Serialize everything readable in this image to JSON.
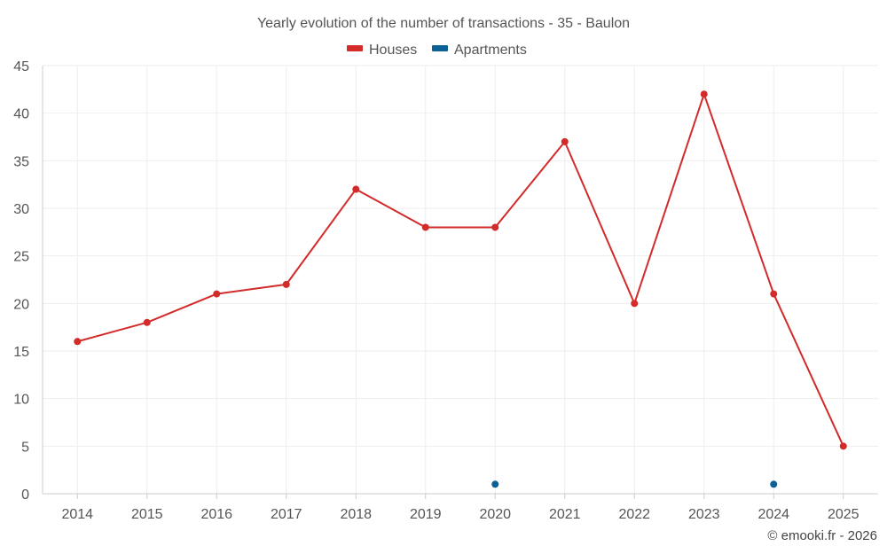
{
  "chart_data": {
    "type": "line",
    "title": "Yearly evolution of the number of transactions - 35 - Baulon",
    "categories": [
      "2014",
      "2015",
      "2016",
      "2017",
      "2018",
      "2019",
      "2020",
      "2021",
      "2022",
      "2023",
      "2024",
      "2025"
    ],
    "y_ticks": [
      "0",
      "5",
      "10",
      "15",
      "20",
      "25",
      "30",
      "35",
      "40",
      "45"
    ],
    "ylim": [
      0,
      45
    ],
    "grid": true,
    "legend_position": "top-center",
    "series": [
      {
        "name": "Houses",
        "color": "#d32a2a",
        "values": [
          16,
          18,
          21,
          22,
          32,
          28,
          28,
          37,
          20,
          42,
          21,
          5
        ]
      },
      {
        "name": "Apartments",
        "color": "#0b6196",
        "values": [
          null,
          null,
          null,
          null,
          null,
          null,
          1,
          null,
          null,
          null,
          1,
          null
        ]
      }
    ],
    "xlabel": "",
    "ylabel": ""
  },
  "credit": "© emooki.fr - 2026"
}
